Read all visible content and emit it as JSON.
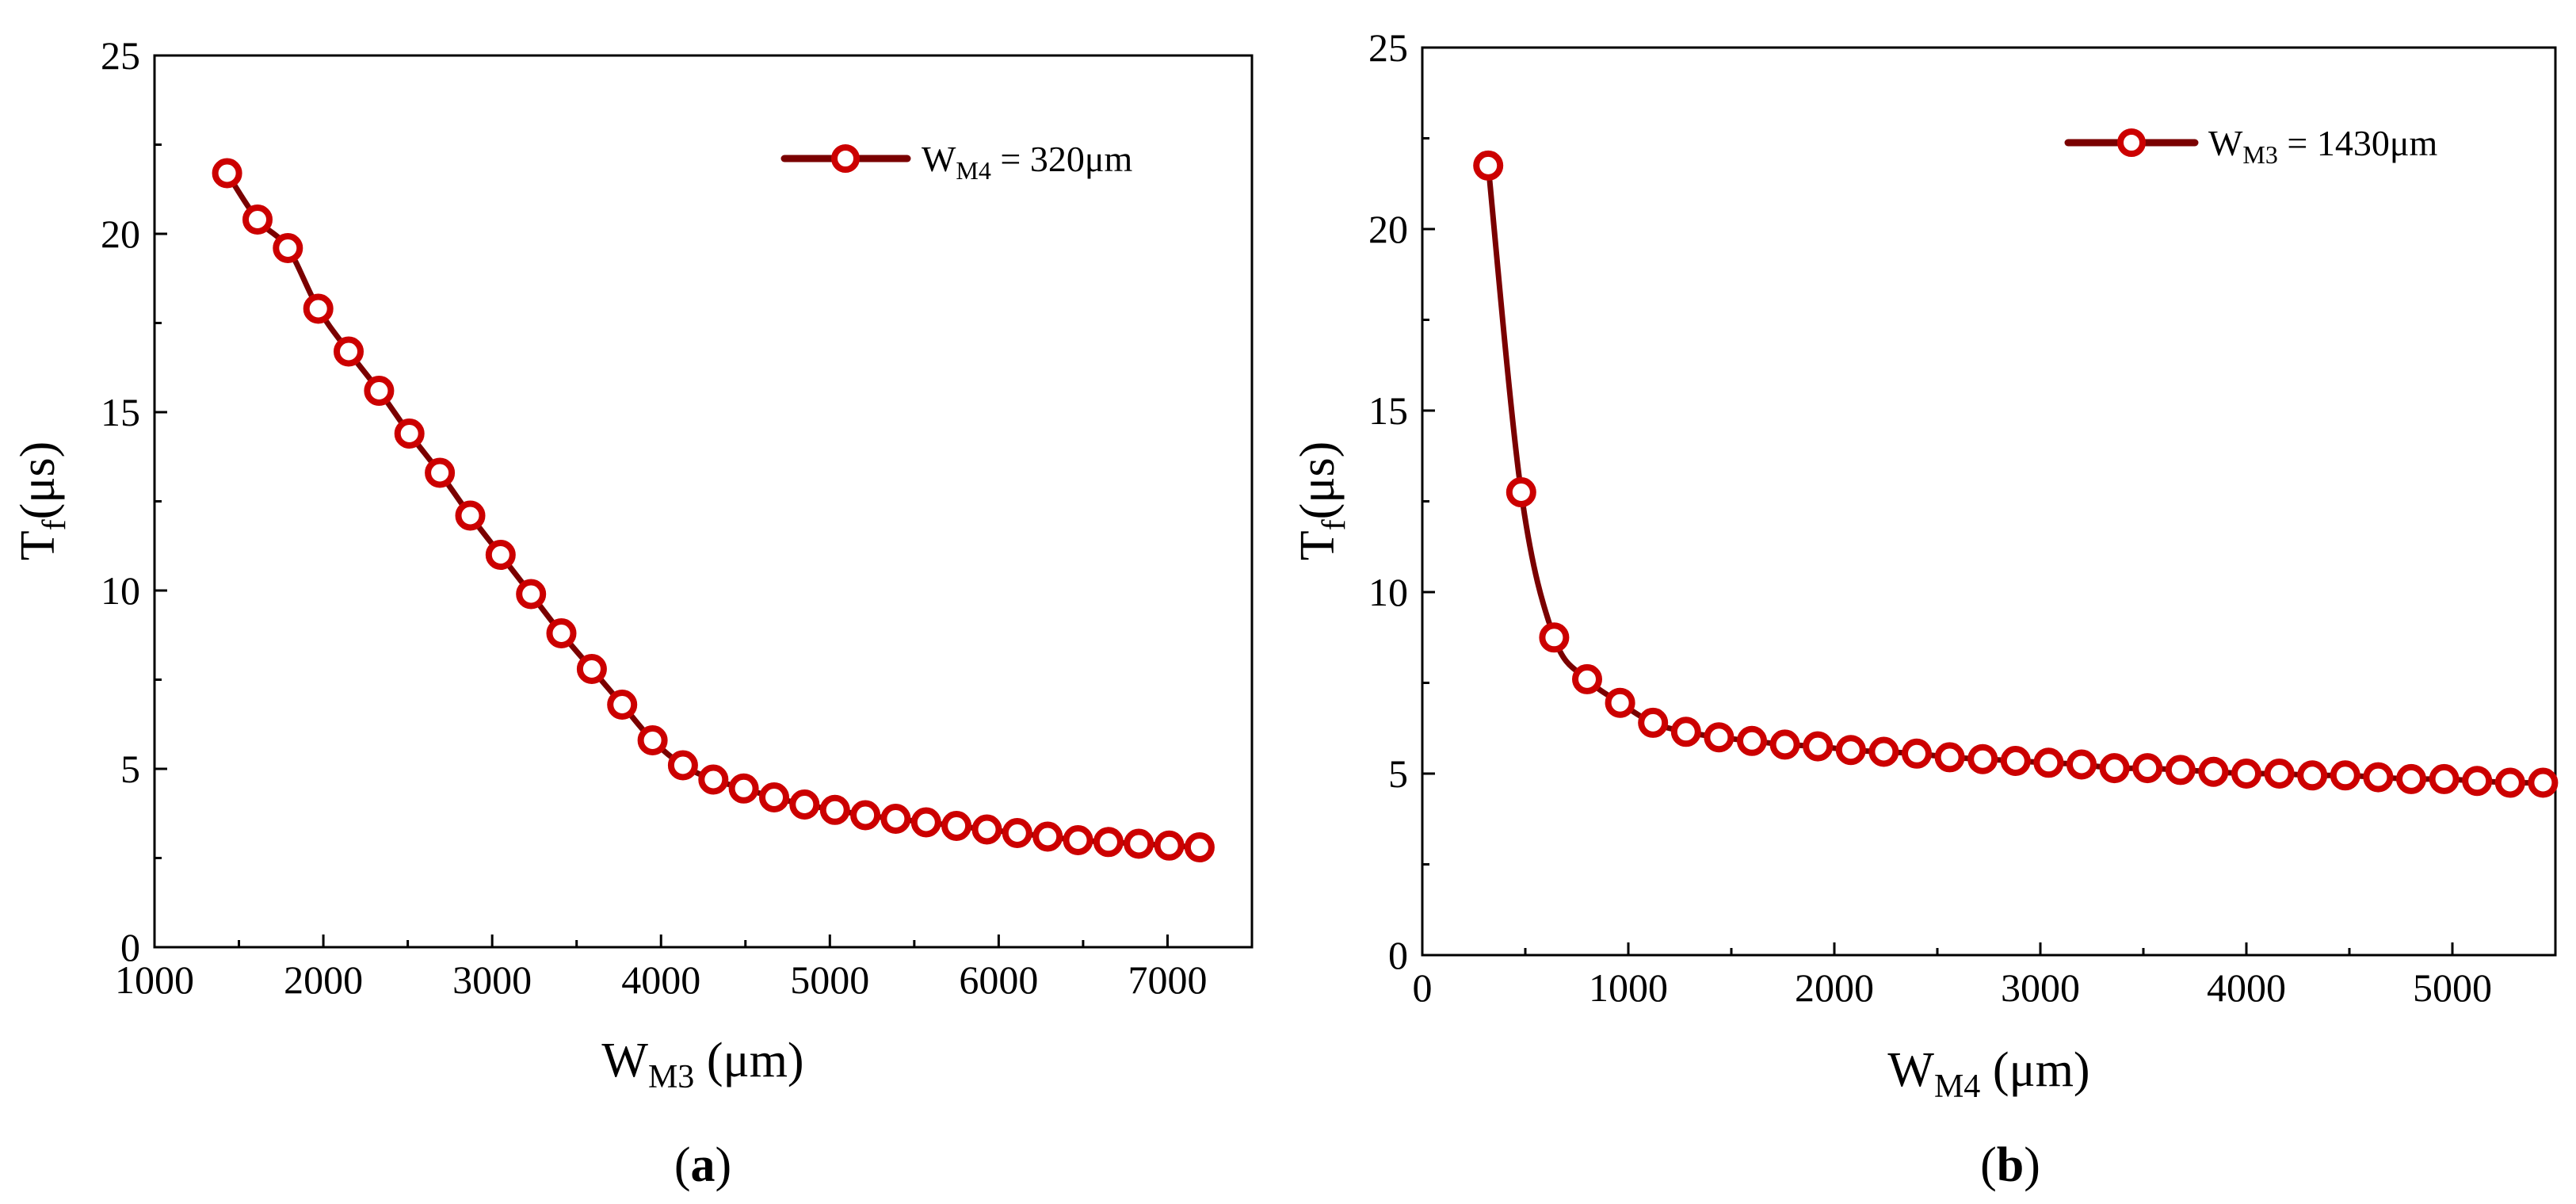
{
  "colors": {
    "series": "#7a0000",
    "marker_edge": "#cc0000",
    "marker_fill": "#ffffff",
    "axis": "#000000"
  },
  "chart_data": [
    {
      "type": "line",
      "panel_label": "a",
      "ylabel": {
        "main": "T",
        "sub": "f",
        "rest": "(μs)"
      },
      "xlabel": {
        "main": "W",
        "sub": "M3",
        "rest": " (μm)"
      },
      "legend": {
        "main": "W",
        "sub": "M4",
        "rest": " = 320μm",
        "position": "top-right"
      },
      "xlim": [
        1000,
        7500
      ],
      "ylim": [
        0,
        25
      ],
      "xticks": [
        1000,
        2000,
        3000,
        4000,
        5000,
        6000,
        7000
      ],
      "yticks": [
        0,
        5,
        10,
        15,
        20,
        25
      ],
      "series": [
        {
          "name": "W_M4 = 320μm",
          "x": [
            1430,
            1610,
            1790,
            1970,
            2150,
            2330,
            2510,
            2690,
            2870,
            3050,
            3230,
            3410,
            3590,
            3770,
            3950,
            4130,
            4310,
            4490,
            4670,
            4850,
            5030,
            5210,
            5390,
            5570,
            5750,
            5930,
            6110,
            6290,
            6470,
            6650,
            6830,
            7010,
            7190
          ],
          "y": [
            21.7,
            20.4,
            19.6,
            17.9,
            16.7,
            15.6,
            14.4,
            13.3,
            12.1,
            11.0,
            9.9,
            8.8,
            7.8,
            6.8,
            5.8,
            5.1,
            4.7,
            4.45,
            4.2,
            4.0,
            3.85,
            3.7,
            3.6,
            3.5,
            3.4,
            3.3,
            3.2,
            3.1,
            3.0,
            2.95,
            2.9,
            2.85,
            2.8
          ]
        }
      ]
    },
    {
      "type": "line",
      "panel_label": "b",
      "ylabel": {
        "main": "T",
        "sub": "f",
        "rest": "(μs)"
      },
      "xlabel": {
        "main": "W",
        "sub": "M4",
        "rest": " (μm)"
      },
      "legend": {
        "main": "W",
        "sub": "M3",
        "rest": " = 1430μm",
        "position": "top-right"
      },
      "xlim": [
        0,
        5500
      ],
      "ylim": [
        0,
        25
      ],
      "xticks": [
        0,
        1000,
        2000,
        3000,
        4000,
        5000
      ],
      "yticks": [
        0,
        5,
        10,
        15,
        20,
        25
      ],
      "series": [
        {
          "name": "W_M3 = 1430μm",
          "x": [
            320,
            480,
            640,
            800,
            960,
            1120,
            1280,
            1440,
            1600,
            1760,
            1920,
            2080,
            2240,
            2400,
            2560,
            2720,
            2880,
            3040,
            3200,
            3360,
            3520,
            3680,
            3840,
            4000,
            4160,
            4320,
            4480,
            4640,
            4800,
            4960,
            5120,
            5280,
            5440
          ],
          "y": [
            21.75,
            12.75,
            8.75,
            7.6,
            6.95,
            6.4,
            6.15,
            6.0,
            5.9,
            5.8,
            5.75,
            5.65,
            5.6,
            5.55,
            5.45,
            5.4,
            5.35,
            5.3,
            5.25,
            5.15,
            5.15,
            5.1,
            5.05,
            5.0,
            5.0,
            4.95,
            4.95,
            4.9,
            4.85,
            4.85,
            4.8,
            4.75,
            4.75
          ]
        }
      ]
    }
  ]
}
